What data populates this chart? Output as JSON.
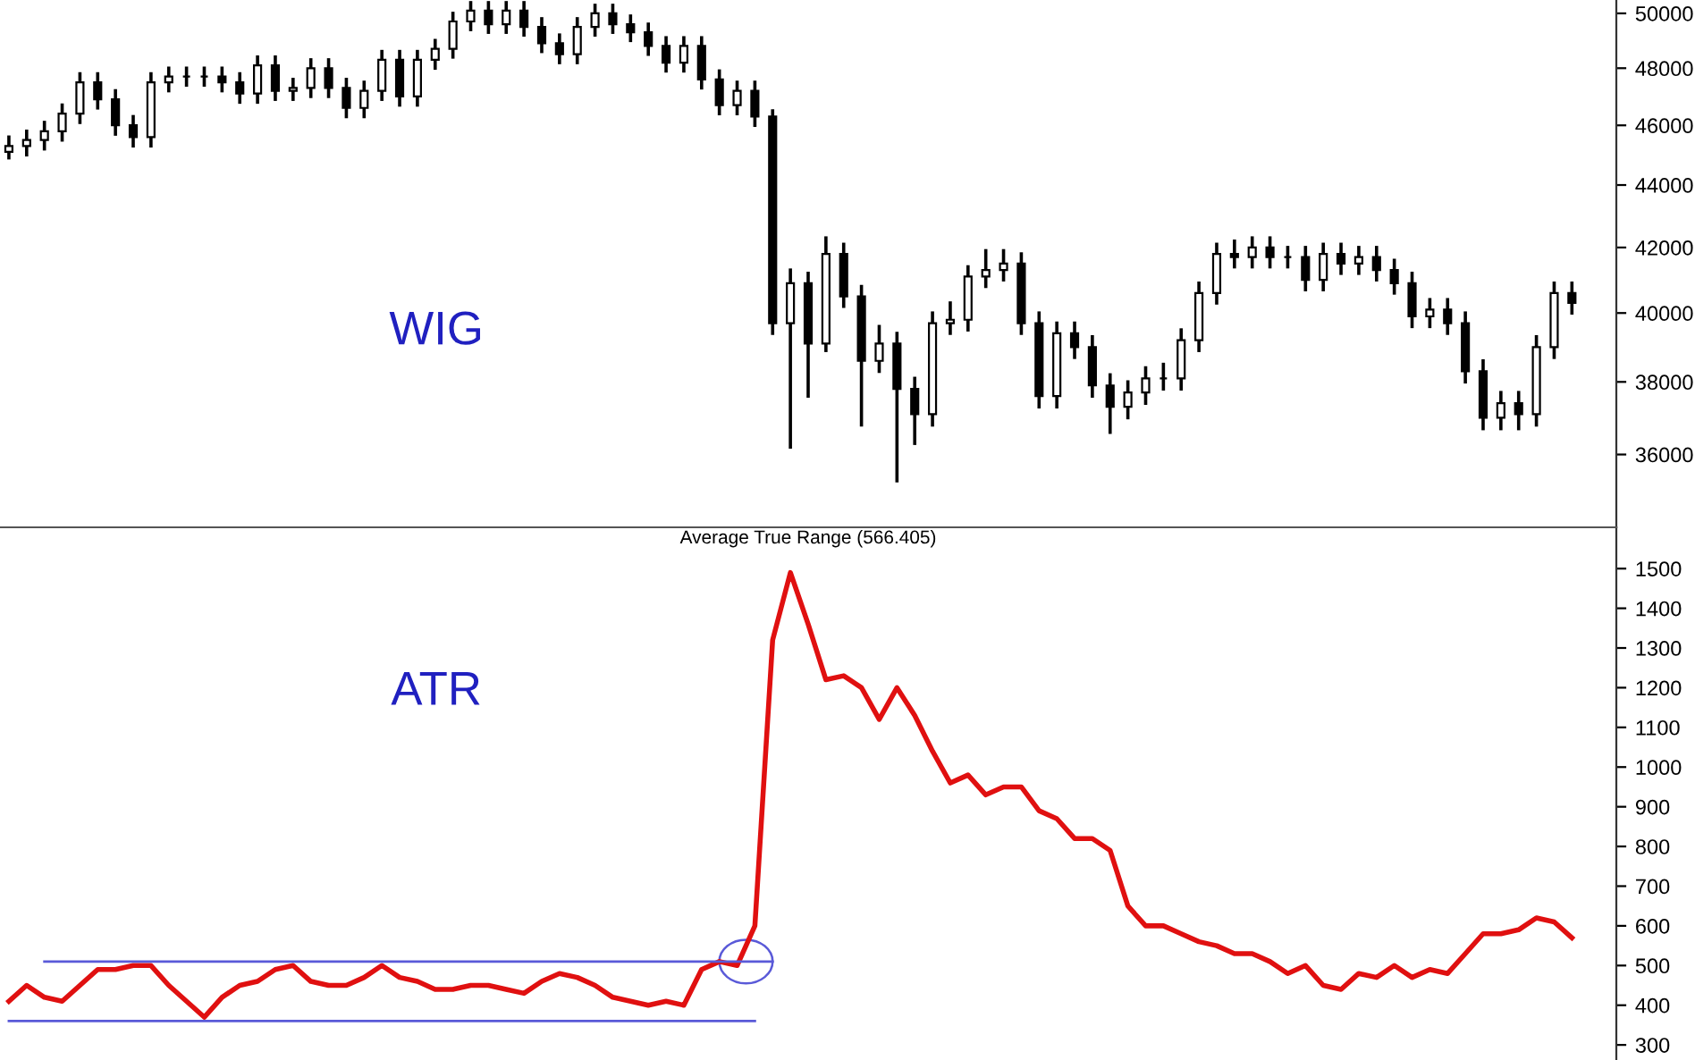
{
  "chart_data": [
    {
      "type": "candlestick",
      "log": true,
      "color": "#000000",
      "tick_labels": "y",
      "annotations": [
        "WIG"
      ],
      "categories": [
        null,
        null,
        null,
        null,
        null,
        null,
        null,
        null,
        null,
        null,
        null,
        null,
        null,
        null,
        null,
        null,
        null,
        null,
        null,
        null,
        null,
        null,
        null,
        null,
        null,
        null,
        null,
        null,
        null,
        null,
        null,
        null,
        null,
        null,
        null,
        null,
        null,
        null,
        null,
        null,
        null,
        null,
        null,
        null,
        null,
        null,
        null,
        null,
        null,
        null,
        null,
        null,
        null,
        null,
        null,
        null,
        null,
        null,
        null,
        null,
        null,
        null,
        null,
        null,
        null,
        null,
        null,
        null,
        null,
        null,
        null,
        null,
        null,
        null,
        null,
        null,
        null,
        null,
        null,
        null,
        null,
        null,
        null,
        null,
        null,
        null,
        null,
        null,
        null
      ],
      "ohlc": [
        [
          45100,
          45600,
          44900,
          45300
        ],
        [
          45300,
          45800,
          45000,
          45500
        ],
        [
          45500,
          46100,
          45200,
          45800
        ],
        [
          45800,
          46700,
          45500,
          46400
        ],
        [
          46400,
          47800,
          46100,
          47500
        ],
        [
          47500,
          47800,
          46600,
          46900
        ],
        [
          46900,
          47200,
          45700,
          46000
        ],
        [
          46000,
          46300,
          45300,
          45600
        ],
        [
          45600,
          47800,
          45300,
          47500
        ],
        [
          47500,
          48000,
          47200,
          47700
        ],
        [
          47700,
          48000,
          47400,
          47700
        ],
        [
          47700,
          48000,
          47400,
          47700
        ],
        [
          47700,
          48000,
          47200,
          47500
        ],
        [
          47500,
          47800,
          46800,
          47100
        ],
        [
          47100,
          48400,
          46800,
          48100
        ],
        [
          48100,
          48400,
          46900,
          47200
        ],
        [
          47200,
          47600,
          46900,
          47300
        ],
        [
          47300,
          48300,
          47000,
          48000
        ],
        [
          48000,
          48300,
          47000,
          47300
        ],
        [
          47300,
          47600,
          46300,
          46600
        ],
        [
          46600,
          47500,
          46300,
          47200
        ],
        [
          47200,
          48600,
          46900,
          48300
        ],
        [
          48300,
          48600,
          46700,
          47000
        ],
        [
          47000,
          48600,
          46700,
          48300
        ],
        [
          48300,
          49000,
          48000,
          48700
        ],
        [
          48700,
          50000,
          48400,
          49700
        ],
        [
          49700,
          50400,
          49400,
          50100
        ],
        [
          50100,
          50400,
          49300,
          49600
        ],
        [
          49600,
          50400,
          49300,
          50100
        ],
        [
          50100,
          50400,
          49200,
          49500
        ],
        [
          49500,
          49800,
          48600,
          48900
        ],
        [
          48900,
          49200,
          48200,
          48500
        ],
        [
          48500,
          49800,
          48200,
          49500
        ],
        [
          49500,
          50300,
          49200,
          50000
        ],
        [
          50000,
          50300,
          49300,
          49600
        ],
        [
          49600,
          49900,
          49000,
          49300
        ],
        [
          49300,
          49600,
          48500,
          48800
        ],
        [
          48800,
          49100,
          47900,
          48200
        ],
        [
          48200,
          49100,
          47900,
          48800
        ],
        [
          48800,
          49100,
          47300,
          47600
        ],
        [
          47600,
          47900,
          46400,
          46700
        ],
        [
          46700,
          47500,
          46400,
          47200
        ],
        [
          47200,
          47500,
          46000,
          46300
        ],
        [
          46300,
          46500,
          39400,
          39700
        ],
        [
          39700,
          41300,
          36200,
          40900
        ],
        [
          40900,
          41200,
          37600,
          39100
        ],
        [
          39100,
          42300,
          38900,
          41800
        ],
        [
          41800,
          42100,
          40200,
          40500
        ],
        [
          40500,
          40800,
          36800,
          38600
        ],
        [
          38600,
          39600,
          38300,
          39100
        ],
        [
          39100,
          39400,
          35300,
          37800
        ],
        [
          37800,
          38100,
          36300,
          37100
        ],
        [
          37100,
          40000,
          36800,
          39700
        ],
        [
          39700,
          40300,
          39400,
          39800
        ],
        [
          39800,
          41400,
          39500,
          41100
        ],
        [
          41100,
          41900,
          40800,
          41300
        ],
        [
          41300,
          41900,
          41000,
          41500
        ],
        [
          41500,
          41800,
          39400,
          39700
        ],
        [
          39700,
          40000,
          37300,
          37600
        ],
        [
          37600,
          39700,
          37300,
          39400
        ],
        [
          39400,
          39700,
          38700,
          39000
        ],
        [
          39000,
          39300,
          37600,
          37900
        ],
        [
          37900,
          38200,
          36600,
          37300
        ],
        [
          37300,
          38000,
          37000,
          37700
        ],
        [
          37700,
          38400,
          37400,
          38100
        ],
        [
          38100,
          38500,
          37800,
          38100
        ],
        [
          38100,
          39500,
          37800,
          39200
        ],
        [
          39200,
          40900,
          38900,
          40600
        ],
        [
          40600,
          42100,
          40300,
          41800
        ],
        [
          41800,
          42200,
          41400,
          41700
        ],
        [
          41700,
          42300,
          41400,
          42000
        ],
        [
          42000,
          42300,
          41400,
          41700
        ],
        [
          41700,
          42000,
          41400,
          41700
        ],
        [
          41700,
          42000,
          40700,
          41000
        ],
        [
          41000,
          42100,
          40700,
          41800
        ],
        [
          41800,
          42100,
          41200,
          41500
        ],
        [
          41500,
          42000,
          41200,
          41700
        ],
        [
          41700,
          42000,
          41000,
          41300
        ],
        [
          41300,
          41600,
          40600,
          40900
        ],
        [
          40900,
          41200,
          39600,
          39900
        ],
        [
          39900,
          40400,
          39600,
          40100
        ],
        [
          40100,
          40400,
          39400,
          39700
        ],
        [
          39700,
          40000,
          38000,
          38300
        ],
        [
          38300,
          38600,
          36700,
          37000
        ],
        [
          37000,
          37700,
          36700,
          37400
        ],
        [
          37400,
          37700,
          36700,
          37100
        ],
        [
          37100,
          39300,
          36800,
          39000
        ],
        [
          39000,
          40900,
          38700,
          40600
        ],
        [
          40600,
          40900,
          40000,
          40300
        ]
      ],
      "ylim": [
        34100,
        50500
      ],
      "yticks": [
        36000,
        38000,
        40000,
        42000,
        44000,
        46000,
        48000,
        50000
      ]
    },
    {
      "type": "line",
      "title": "Average True Range (566.405)",
      "tick_labels": "y",
      "annotations": [
        "ATR"
      ],
      "categories": [
        null,
        null,
        null,
        null,
        null,
        null,
        null,
        null,
        null,
        null,
        null,
        null,
        null,
        null,
        null,
        null,
        null,
        null,
        null,
        null,
        null,
        null,
        null,
        null,
        null,
        null,
        null,
        null,
        null,
        null,
        null,
        null,
        null,
        null,
        null,
        null,
        null,
        null,
        null,
        null,
        null,
        null,
        null,
        null,
        null,
        null,
        null,
        null,
        null,
        null,
        null,
        null,
        null,
        null,
        null,
        null,
        null,
        null,
        null,
        null,
        null,
        null,
        null,
        null,
        null,
        null,
        null,
        null,
        null,
        null,
        null,
        null,
        null,
        null,
        null,
        null,
        null,
        null,
        null,
        null,
        null,
        null,
        null,
        null,
        null,
        null,
        null,
        null,
        null
      ],
      "series": [
        {
          "color": "#e01010",
          "values": [
            410,
            450,
            420,
            410,
            450,
            490,
            490,
            500,
            500,
            450,
            410,
            370,
            420,
            450,
            460,
            490,
            500,
            460,
            450,
            450,
            470,
            500,
            470,
            460,
            440,
            440,
            450,
            450,
            440,
            430,
            460,
            480,
            470,
            450,
            420,
            410,
            400,
            410,
            400,
            490,
            510,
            500,
            600,
            1320,
            1490,
            1360,
            1220,
            1230,
            1200,
            1120,
            1200,
            1130,
            1040,
            960,
            980,
            930,
            950,
            950,
            890,
            870,
            820,
            820,
            790,
            650,
            600,
            600,
            580,
            560,
            550,
            530,
            530,
            510,
            480,
            500,
            450,
            440,
            480,
            470,
            500,
            470,
            490,
            480,
            530,
            580,
            580,
            590,
            620,
            610,
            570
          ]
        },
        {
          "type": "line",
          "color": "#5a5ad8",
          "values": [
            null,
            null,
            510,
            510,
            510,
            510,
            510,
            510,
            510,
            510,
            510,
            510,
            510,
            510,
            510,
            510,
            510,
            510,
            510,
            510,
            510,
            510,
            510,
            510,
            510,
            510,
            510,
            510,
            510,
            510,
            510,
            510,
            510,
            510,
            510,
            510,
            510,
            510,
            510,
            510,
            510,
            510,
            510,
            510,
            null,
            null,
            null,
            null,
            null,
            null,
            null,
            null,
            null,
            null,
            null,
            null,
            null,
            null,
            null,
            null,
            null,
            null,
            null,
            null,
            null,
            null,
            null,
            null,
            null,
            null,
            null,
            null,
            null,
            null,
            null,
            null,
            null,
            null,
            null,
            null,
            null,
            null,
            null,
            null,
            null,
            null,
            null,
            null,
            null
          ]
        },
        {
          "type": "line",
          "color": "#5a5ad8",
          "values": [
            360,
            360,
            360,
            360,
            360,
            360,
            360,
            360,
            360,
            360,
            360,
            360,
            360,
            360,
            360,
            360,
            360,
            360,
            360,
            360,
            360,
            360,
            360,
            360,
            360,
            360,
            360,
            360,
            360,
            360,
            360,
            360,
            360,
            360,
            360,
            360,
            360,
            360,
            360,
            360,
            360,
            360,
            360,
            null,
            null,
            null,
            null,
            null,
            null,
            null,
            null,
            null,
            null,
            null,
            null,
            null,
            null,
            null,
            null,
            null,
            null,
            null,
            null,
            null,
            null,
            null,
            null,
            null,
            null,
            null,
            null,
            null,
            null,
            null,
            null,
            null,
            null,
            null,
            null,
            null,
            null,
            null,
            null,
            null,
            null,
            null,
            null,
            null,
            null
          ]
        }
      ],
      "ylim": [
        262,
        1604
      ],
      "yticks": [
        300,
        400,
        500,
        600,
        700,
        800,
        900,
        1000,
        1100,
        1200,
        1300,
        1400,
        1500
      ]
    }
  ]
}
